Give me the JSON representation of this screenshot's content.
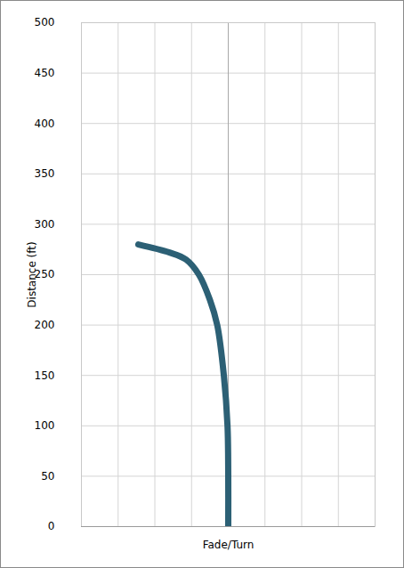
{
  "chart_data": {
    "type": "line",
    "x_label": "Fade/Turn",
    "y_label": "Distance (ft)",
    "x": [
      0,
      0,
      -0.02,
      -0.12,
      -0.3,
      -0.5,
      -0.8,
      -1.15,
      -1.6,
      -2.45
    ],
    "values": [
      0,
      50,
      100,
      150,
      200,
      225,
      250,
      265,
      272,
      280
    ],
    "color": "#2c6075",
    "xlim": [
      -4,
      4
    ],
    "xticks": [
      -4,
      -3,
      -2,
      -1,
      0,
      1,
      2,
      3,
      4
    ],
    "ylim": [
      0,
      500
    ],
    "yticks": [
      0,
      50,
      100,
      150,
      200,
      250,
      300,
      350,
      400,
      450,
      500
    ],
    "grid": true,
    "tick_labels": "y"
  }
}
